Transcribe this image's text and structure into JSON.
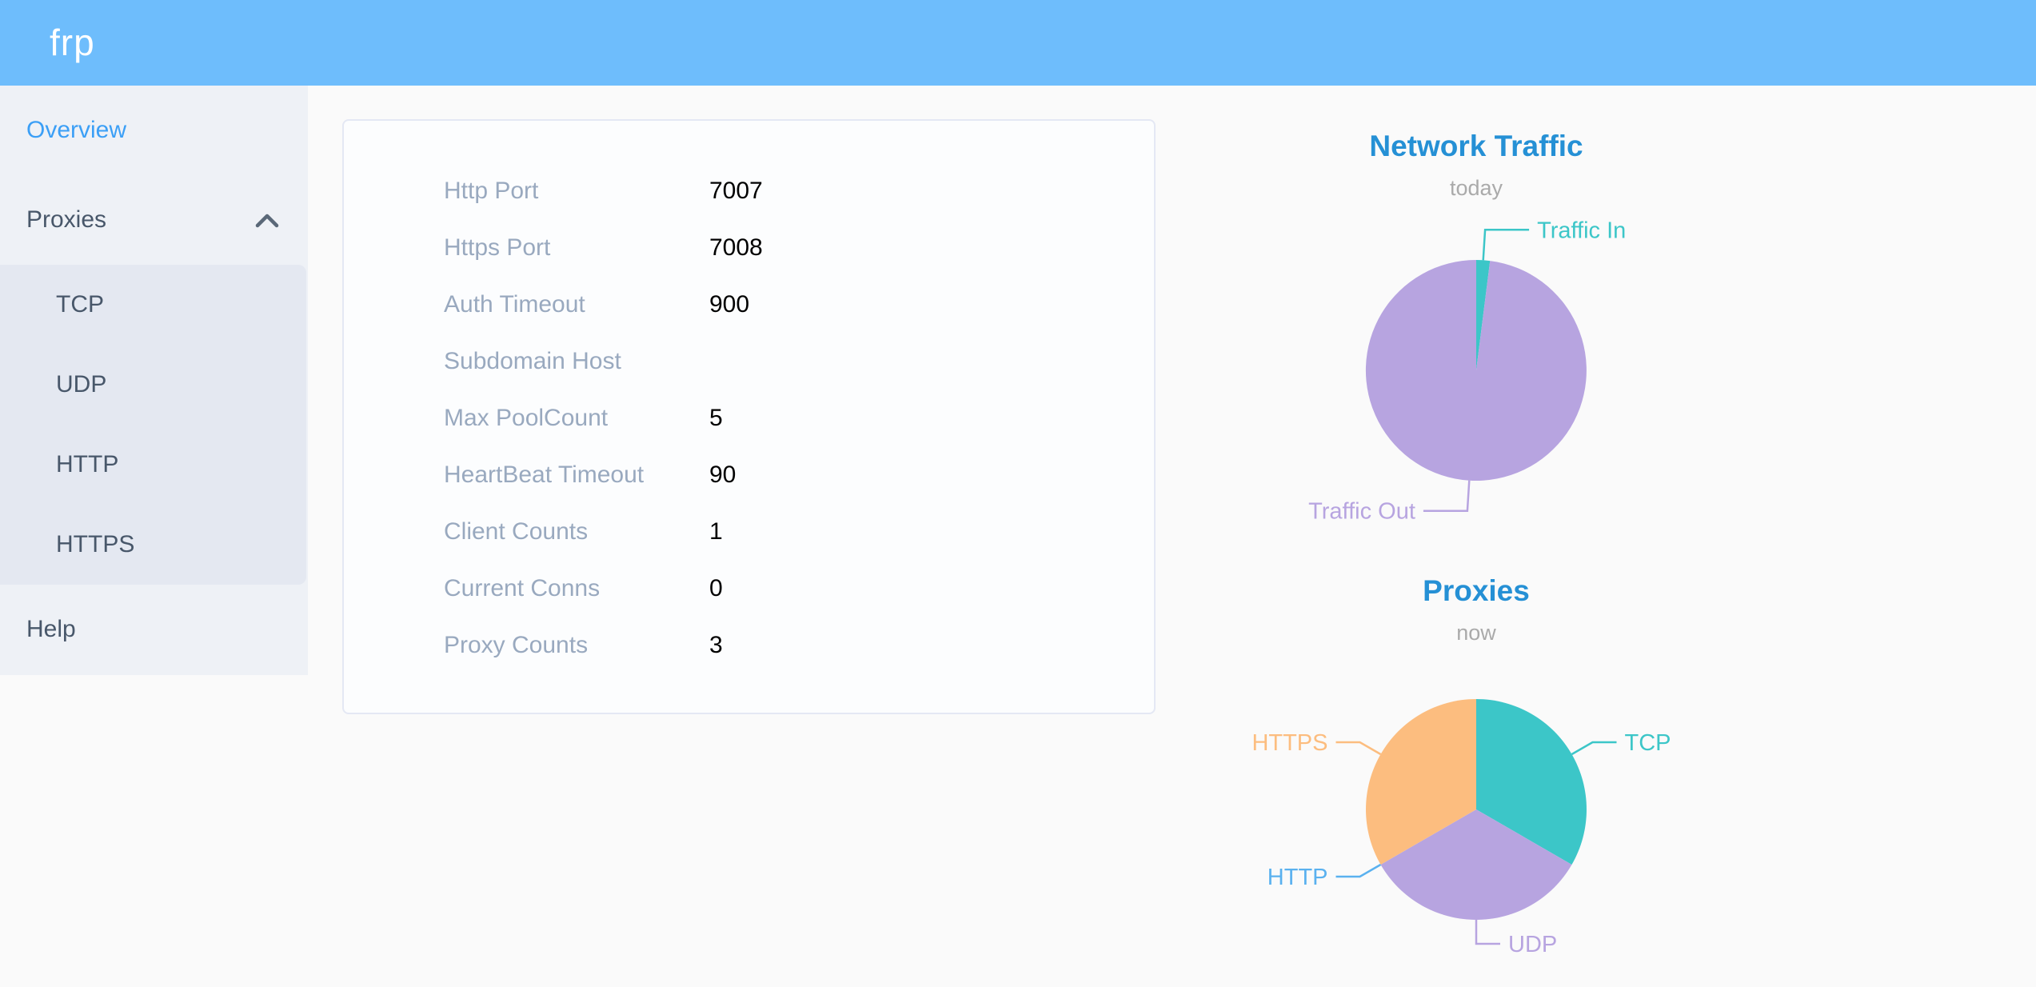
{
  "app": {
    "logo": "frp"
  },
  "sidebar": {
    "items": [
      {
        "label": "Overview",
        "active": true
      },
      {
        "label": "Proxies",
        "expanded": true,
        "children": [
          "TCP",
          "UDP",
          "HTTP",
          "HTTPS"
        ]
      },
      {
        "label": "Help",
        "active": false
      }
    ]
  },
  "overview_card": {
    "rows": [
      {
        "label": "Http Port",
        "value": "7007"
      },
      {
        "label": "Https Port",
        "value": "7008"
      },
      {
        "label": "Auth Timeout",
        "value": "900"
      },
      {
        "label": "Subdomain Host",
        "value": ""
      },
      {
        "label": "Max PoolCount",
        "value": "5"
      },
      {
        "label": "HeartBeat Timeout",
        "value": "90"
      },
      {
        "label": "Client Counts",
        "value": "1"
      },
      {
        "label": "Current Conns",
        "value": "0"
      },
      {
        "label": "Proxy Counts",
        "value": "3"
      }
    ]
  },
  "chart_data": [
    {
      "type": "pie",
      "title": "Network Traffic",
      "subtitle": "today",
      "values_are": "proportions estimated from arc angles",
      "legend_position": "callout-labels",
      "series": [
        {
          "name": "Traffic In",
          "value": 2,
          "color": "#3cc6c8"
        },
        {
          "name": "Traffic Out",
          "value": 98,
          "color": "#b7a4e0"
        }
      ],
      "layout": {
        "label_ext": 38,
        "label_horiz": 55
      }
    },
    {
      "type": "pie",
      "title": "Proxies",
      "subtitle": "now",
      "values_are": "proxy counts by type",
      "legend_position": "callout-labels",
      "series": [
        {
          "name": "TCP",
          "value": 1,
          "color": "#3cc6c8"
        },
        {
          "name": "UDP",
          "value": 1,
          "color": "#b7a4e0"
        },
        {
          "name": "HTTP",
          "value": 0,
          "color": "#5ab1ef"
        },
        {
          "name": "HTTPS",
          "value": 1,
          "color": "#fcbd7f"
        }
      ],
      "layout": {
        "label_ext": 30,
        "label_horiz": 30
      }
    }
  ],
  "colors": {
    "header_bg": "#6ebdfc",
    "sidebar_bg": "#eef1f6",
    "submenu_bg": "#e4e8f1",
    "menu_text": "#48576a",
    "menu_active": "#3b9ff6",
    "chart_title": "#2590d5",
    "chart_subtitle": "#aaaaaa",
    "card_label": "#99a9bf"
  }
}
